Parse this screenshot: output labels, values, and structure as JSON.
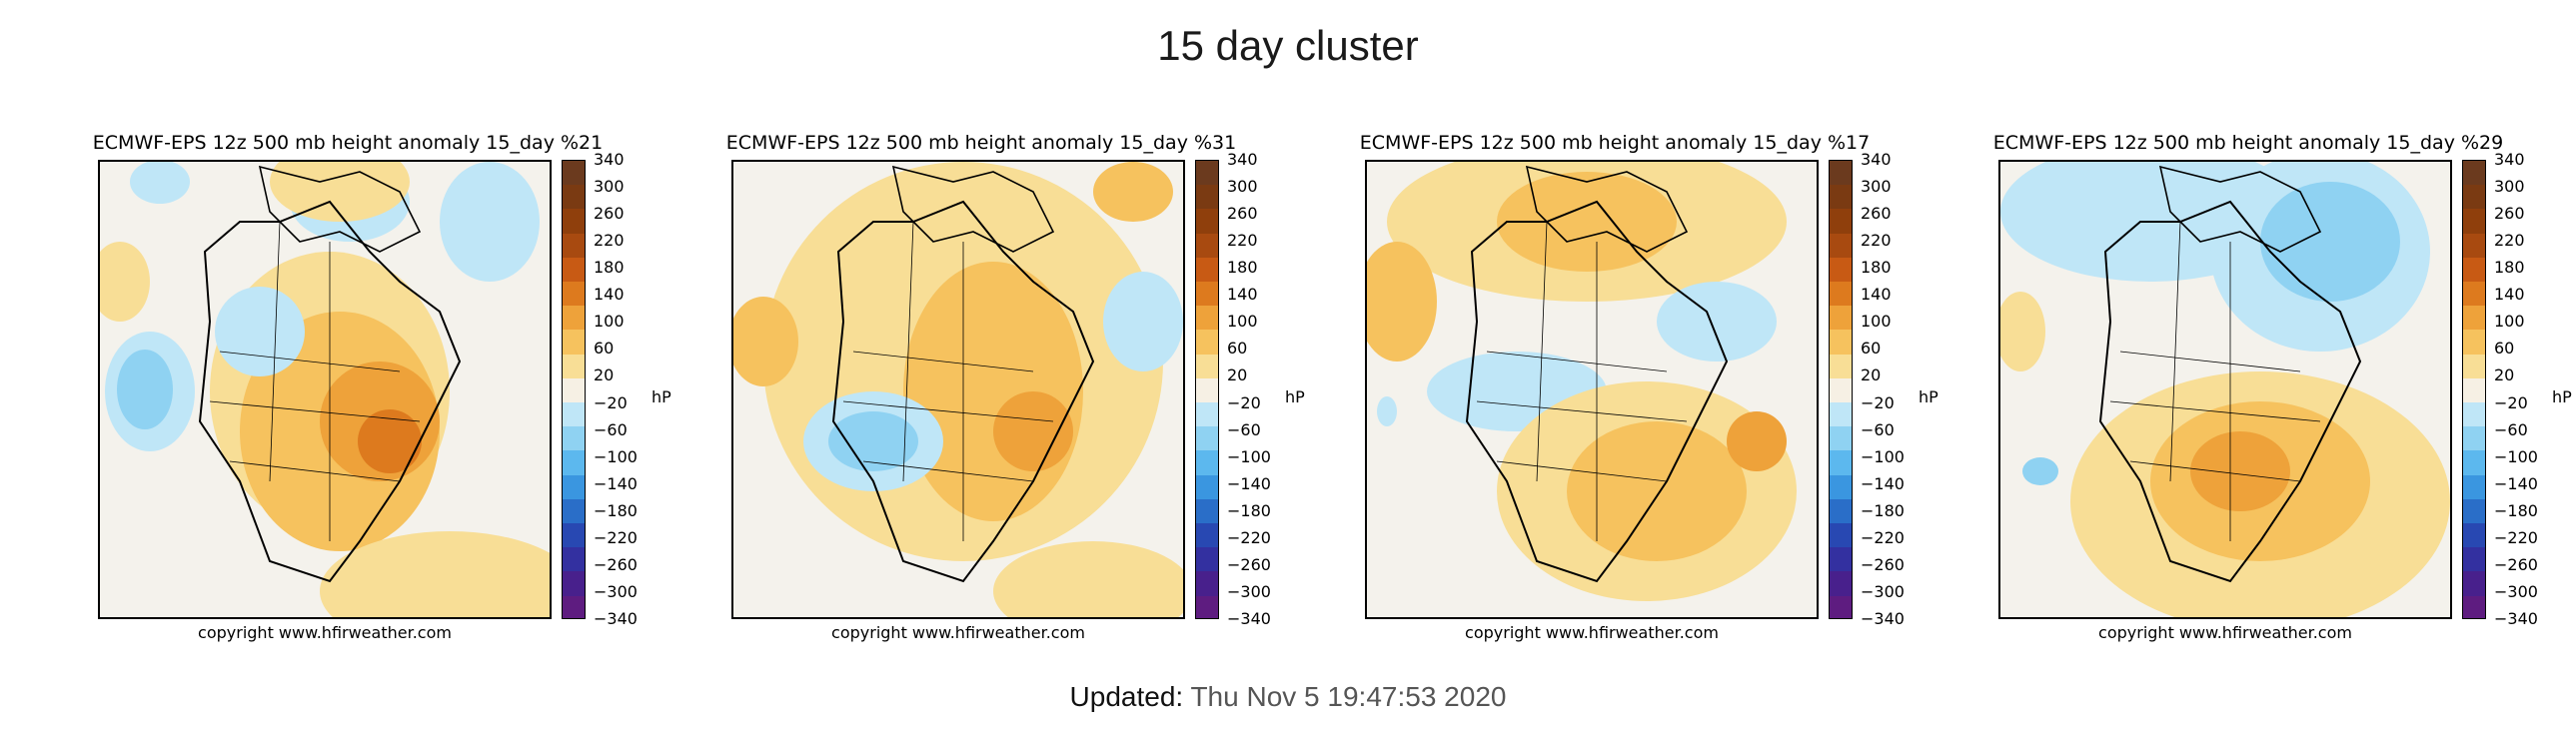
{
  "page": {
    "title": "15 day cluster",
    "updated_label": "Updated:",
    "updated_value": "Thu Nov 5 19:47:53 2020"
  },
  "colorbar": {
    "unit": "hP",
    "ticks": [
      "340",
      "300",
      "260",
      "220",
      "180",
      "140",
      "100",
      "60",
      "20",
      "−20",
      "−60",
      "−100",
      "−140",
      "−180",
      "−220",
      "−260",
      "−300",
      "−340"
    ],
    "colors": [
      "#6b3a1e",
      "#7a3a12",
      "#8f3f0c",
      "#a84a10",
      "#c85a14",
      "#dd7a1e",
      "#eea23a",
      "#f6c25e",
      "#f8de96",
      "#f6f0e4",
      "#bfe6f7",
      "#8fd2f2",
      "#5cb8ee",
      "#3a96e0",
      "#2a6ec8",
      "#2848b2",
      "#3330a0",
      "#48208c",
      "#5e1c80"
    ]
  },
  "panels": [
    {
      "title": "ECMWF-EPS 12z 500 mb height anomaly 15_day %21",
      "copyright": "copyright www.hfirweather.com"
    },
    {
      "title": "ECMWF-EPS 12z 500 mb height anomaly 15_day %31",
      "copyright": "copyright www.hfirweather.com"
    },
    {
      "title": "ECMWF-EPS 12z 500 mb height anomaly 15_day %17",
      "copyright": "copyright www.hfirweather.com"
    },
    {
      "title": "ECMWF-EPS 12z 500 mb height anomaly 15_day %29",
      "copyright": "copyright www.hfirweather.com"
    }
  ]
}
